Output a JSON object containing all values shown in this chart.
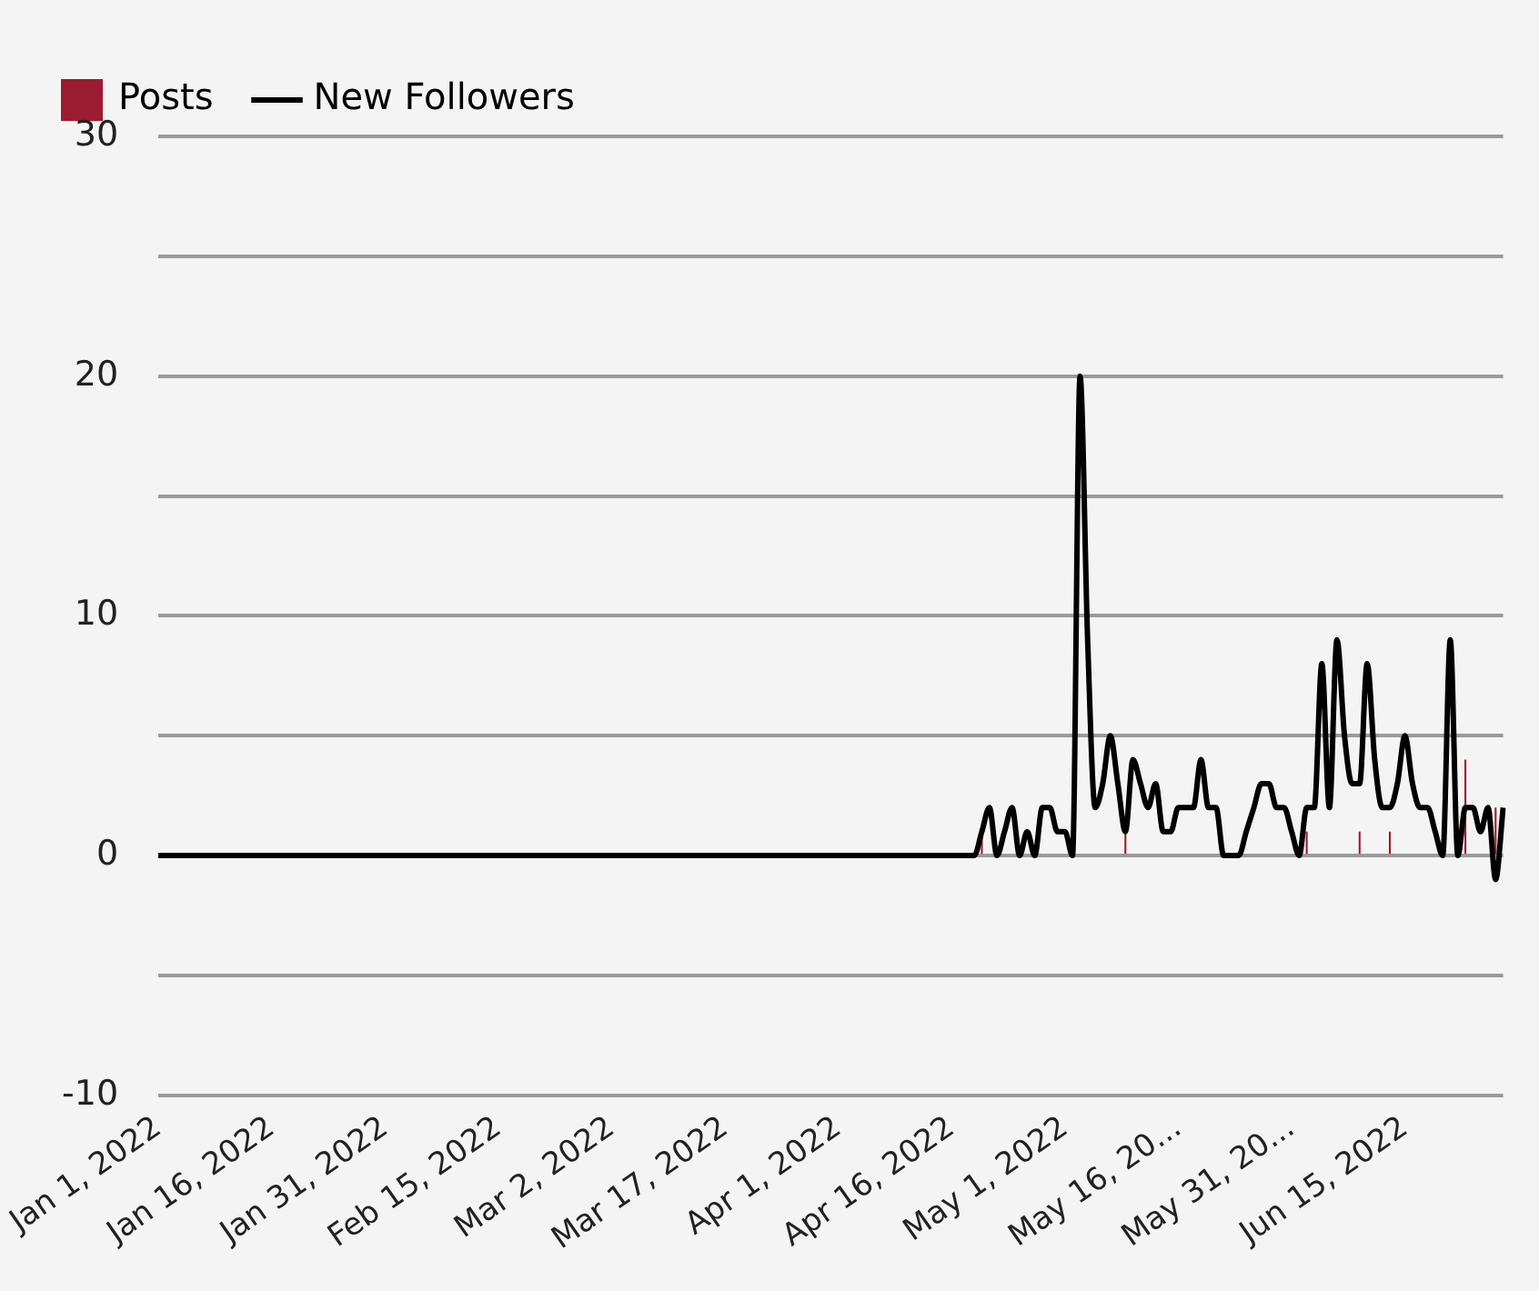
{
  "chart_data": {
    "type": "bar",
    "categories": [
      "Jan 1, 2022",
      null,
      null,
      null,
      null,
      null,
      null,
      null,
      null,
      null,
      null,
      null,
      null,
      null,
      null,
      "Jan 16, 2022",
      null,
      null,
      null,
      null,
      null,
      null,
      null,
      null,
      null,
      null,
      null,
      null,
      null,
      null,
      "Jan 31, 2022",
      null,
      null,
      null,
      null,
      null,
      null,
      null,
      null,
      null,
      null,
      null,
      null,
      null,
      null,
      "Feb 15, 2022",
      null,
      null,
      null,
      null,
      null,
      null,
      null,
      null,
      null,
      null,
      null,
      null,
      null,
      null,
      "Mar 2, 2022",
      null,
      null,
      null,
      null,
      null,
      null,
      null,
      null,
      null,
      null,
      null,
      null,
      null,
      null,
      "Mar 17, 2022",
      null,
      null,
      null,
      null,
      null,
      null,
      null,
      null,
      null,
      null,
      null,
      null,
      null,
      null,
      "Apr 1, 2022",
      null,
      null,
      null,
      null,
      null,
      null,
      null,
      null,
      null,
      null,
      null,
      null,
      null,
      null,
      "Apr 16, 2022",
      null,
      null,
      null,
      null,
      null,
      null,
      null,
      null,
      null,
      null,
      null,
      null,
      null,
      null,
      "May 1, 2022",
      null,
      null,
      null,
      null,
      null,
      null,
      null,
      null,
      null,
      null,
      null,
      null,
      null,
      null,
      "May 16, 20...",
      null,
      null,
      null,
      null,
      null,
      null,
      null,
      null,
      null,
      null,
      null,
      null,
      null,
      null,
      "May 31, 20...",
      null,
      null,
      null,
      null,
      null,
      null,
      null,
      null,
      null,
      null,
      null,
      null,
      null,
      null,
      "Jun 15, 2022",
      null,
      null,
      null,
      null,
      null,
      null,
      null,
      null,
      null,
      null,
      null,
      null,
      null
    ],
    "series": [
      {
        "name": "Posts",
        "color": "#9b1b30",
        "values": [
          0,
          0,
          0,
          0,
          0,
          0,
          0,
          0,
          0,
          0,
          0,
          0,
          0,
          0,
          0,
          0,
          0,
          0,
          0,
          0,
          0,
          0,
          0,
          0,
          0,
          0,
          0,
          0,
          0,
          0,
          0,
          0,
          0,
          0,
          0,
          0,
          0,
          0,
          0,
          0,
          0,
          0,
          0,
          0,
          0,
          0,
          0,
          0,
          0,
          0,
          0,
          0,
          0,
          0,
          0,
          0,
          0,
          0,
          0,
          0,
          0,
          0,
          0,
          0,
          0,
          0,
          0,
          0,
          0,
          0,
          0,
          0,
          0,
          0,
          0,
          0,
          0,
          0,
          0,
          0,
          0,
          0,
          0,
          0,
          0,
          0,
          0,
          0,
          0,
          0,
          0,
          0,
          0,
          0,
          0,
          0,
          0,
          0,
          0,
          0,
          0,
          0,
          0,
          0,
          0,
          0,
          0,
          0,
          0,
          1,
          0,
          0,
          0,
          0,
          0,
          0,
          0,
          0,
          0,
          0,
          0,
          0,
          0,
          0,
          0,
          0,
          0,
          0,
          1,
          0,
          0,
          0,
          0,
          0,
          0,
          0,
          0,
          0,
          0,
          0,
          0,
          0,
          0,
          0,
          null,
          0,
          0,
          0,
          0,
          0,
          0,
          0,
          1,
          0,
          0,
          0,
          0,
          0,
          0,
          1,
          0,
          0,
          0,
          1,
          0,
          0,
          0,
          0,
          0,
          0,
          0,
          0,
          0,
          4,
          0,
          0,
          0,
          2,
          0
        ]
      },
      {
        "name": "New Followers",
        "type": "line",
        "color": "#000000",
        "values": [
          0,
          0,
          0,
          0,
          0,
          0,
          0,
          0,
          0,
          0,
          0,
          0,
          0,
          0,
          0,
          0,
          0,
          0,
          0,
          0,
          0,
          0,
          0,
          0,
          0,
          0,
          0,
          0,
          0,
          0,
          0,
          0,
          0,
          0,
          0,
          0,
          0,
          0,
          0,
          0,
          0,
          0,
          0,
          0,
          0,
          0,
          0,
          0,
          0,
          0,
          0,
          0,
          0,
          0,
          0,
          0,
          0,
          0,
          0,
          0,
          0,
          0,
          0,
          0,
          0,
          0,
          0,
          0,
          0,
          0,
          0,
          0,
          0,
          0,
          0,
          0,
          0,
          0,
          0,
          0,
          0,
          0,
          0,
          0,
          0,
          0,
          0,
          0,
          0,
          0,
          0,
          0,
          0,
          0,
          0,
          0,
          0,
          0,
          0,
          0,
          0,
          0,
          0,
          0,
          0,
          0,
          0,
          0,
          0,
          1,
          2,
          0,
          1,
          2,
          0,
          1,
          0,
          2,
          2,
          1,
          1,
          0,
          20,
          9,
          2,
          3,
          5,
          3,
          1,
          4,
          3,
          2,
          3,
          1,
          1,
          2,
          2,
          2,
          4,
          2,
          2,
          0,
          0,
          0,
          1,
          2,
          3,
          3,
          2,
          2,
          1,
          0,
          2,
          2,
          8,
          2,
          9,
          5,
          3,
          3,
          8,
          4,
          2,
          2,
          3,
          5,
          3,
          2,
          2,
          1,
          0,
          9,
          0,
          2,
          2,
          1,
          2,
          -1,
          2
        ]
      }
    ],
    "ylim": [
      -10,
      30
    ],
    "yticks": [
      -10,
      {
        "value": -5,
        "label": null
      },
      0,
      {
        "value": 5,
        "label": null
      },
      10,
      {
        "value": 15,
        "label": null
      },
      20,
      {
        "value": 25,
        "label": null
      },
      30
    ],
    "grid": "y",
    "legend": "top left",
    "marker": "none"
  }
}
